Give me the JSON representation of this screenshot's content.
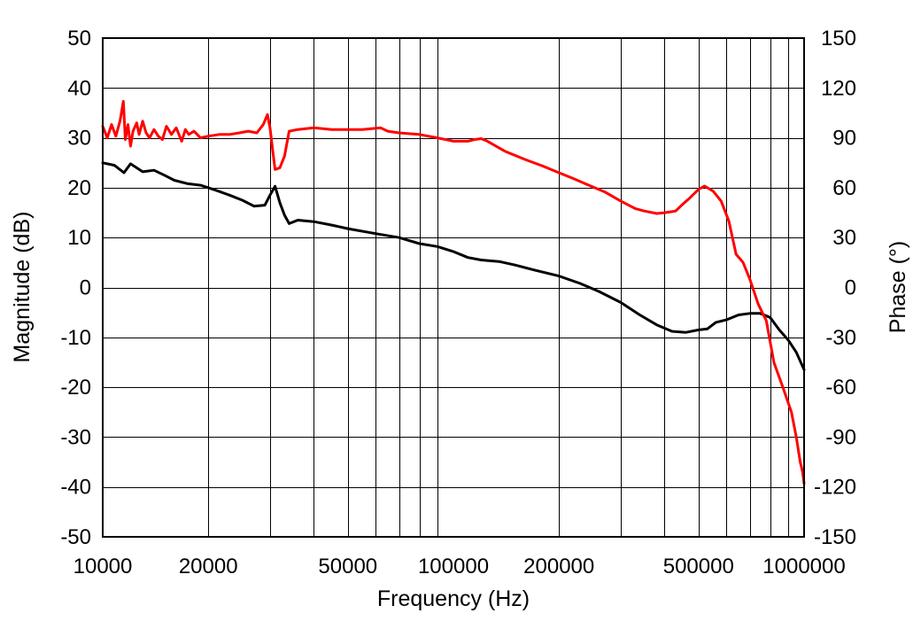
{
  "chart_data": {
    "type": "line",
    "xlabel": "Frequency (Hz)",
    "ylabel": "Magnitude (dB)",
    "y2label": "Phase (°)",
    "xscale": "log",
    "xlim": [
      10000,
      1000000
    ],
    "ylim": [
      -50,
      50
    ],
    "y2lim": [
      -150,
      150
    ],
    "grid": true,
    "x_tick_labels": [
      "10000",
      "20000",
      "50000",
      "100000",
      "200000",
      "500000",
      "1000000"
    ],
    "y_tick_labels": [
      "50",
      "40",
      "30",
      "20",
      "10",
      "0",
      "-10",
      "-20",
      "-30",
      "-40",
      "-50"
    ],
    "y2_tick_labels": [
      "150",
      "120",
      "90",
      "60",
      "30",
      "0",
      "-30",
      "-60",
      "-90",
      "-120",
      "-150"
    ],
    "series": [
      {
        "axis": "left",
        "color": "#000000",
        "points": [
          [
            10000,
            25
          ],
          [
            10800,
            24.5
          ],
          [
            11500,
            23
          ],
          [
            12000,
            24.8
          ],
          [
            13000,
            23.2
          ],
          [
            14000,
            23.5
          ],
          [
            15000,
            22.5
          ],
          [
            16000,
            21.5
          ],
          [
            17500,
            20.8
          ],
          [
            19000,
            20.5
          ],
          [
            21000,
            19.5
          ],
          [
            23000,
            18.5
          ],
          [
            25000,
            17.5
          ],
          [
            27000,
            16.3
          ],
          [
            29000,
            16.5
          ],
          [
            30000,
            18.5
          ],
          [
            31000,
            20.3
          ],
          [
            32000,
            17
          ],
          [
            33000,
            14.5
          ],
          [
            34000,
            12.8
          ],
          [
            36000,
            13.5
          ],
          [
            40000,
            13.2
          ],
          [
            45000,
            12.5
          ],
          [
            50000,
            11.8
          ],
          [
            60000,
            10.8
          ],
          [
            70000,
            10
          ],
          [
            80000,
            8.8
          ],
          [
            90000,
            8.2
          ],
          [
            100000,
            7.2
          ],
          [
            110000,
            6
          ],
          [
            120000,
            5.5
          ],
          [
            135000,
            5.2
          ],
          [
            150000,
            4.5
          ],
          [
            170000,
            3.5
          ],
          [
            200000,
            2.3
          ],
          [
            230000,
            0.8
          ],
          [
            260000,
            -0.8
          ],
          [
            300000,
            -3
          ],
          [
            340000,
            -5.5
          ],
          [
            380000,
            -7.5
          ],
          [
            420000,
            -8.8
          ],
          [
            460000,
            -9
          ],
          [
            500000,
            -8.5
          ],
          [
            530000,
            -8.3
          ],
          [
            560000,
            -7
          ],
          [
            600000,
            -6.5
          ],
          [
            650000,
            -5.5
          ],
          [
            700000,
            -5.2
          ],
          [
            750000,
            -5.2
          ],
          [
            800000,
            -6
          ],
          [
            850000,
            -8.5
          ],
          [
            900000,
            -10.5
          ],
          [
            950000,
            -13
          ],
          [
            1000000,
            -16.5
          ]
        ]
      },
      {
        "axis": "right",
        "color": "#ff0000",
        "points": [
          [
            10000,
            97
          ],
          [
            10300,
            90
          ],
          [
            10600,
            98
          ],
          [
            10900,
            91
          ],
          [
            11200,
            100
          ],
          [
            11450,
            112
          ],
          [
            11600,
            89
          ],
          [
            11800,
            98
          ],
          [
            12000,
            85
          ],
          [
            12200,
            94
          ],
          [
            12500,
            99
          ],
          [
            12700,
            92
          ],
          [
            13000,
            100
          ],
          [
            13300,
            93
          ],
          [
            13600,
            90
          ],
          [
            14000,
            95
          ],
          [
            14400,
            91
          ],
          [
            14800,
            89
          ],
          [
            15200,
            97
          ],
          [
            15700,
            92
          ],
          [
            16200,
            96
          ],
          [
            16800,
            88
          ],
          [
            17200,
            95
          ],
          [
            17600,
            92
          ],
          [
            18200,
            94
          ],
          [
            19000,
            90
          ],
          [
            20000,
            91
          ],
          [
            21500,
            92
          ],
          [
            23000,
            92
          ],
          [
            24500,
            93
          ],
          [
            26000,
            94
          ],
          [
            27500,
            93
          ],
          [
            28700,
            98
          ],
          [
            29500,
            104
          ],
          [
            30000,
            96
          ],
          [
            30500,
            83
          ],
          [
            31000,
            71
          ],
          [
            32000,
            72
          ],
          [
            33000,
            79
          ],
          [
            34000,
            94
          ],
          [
            36000,
            95
          ],
          [
            40000,
            96
          ],
          [
            45000,
            95
          ],
          [
            50000,
            95
          ],
          [
            55000,
            95
          ],
          [
            62000,
            96
          ],
          [
            65000,
            94
          ],
          [
            70000,
            93
          ],
          [
            80000,
            92
          ],
          [
            90000,
            90
          ],
          [
            100000,
            88
          ],
          [
            110000,
            88
          ],
          [
            115000,
            89
          ],
          [
            120000,
            89.5
          ],
          [
            125000,
            88
          ],
          [
            140000,
            82
          ],
          [
            160000,
            77
          ],
          [
            180000,
            73
          ],
          [
            200000,
            69
          ],
          [
            220000,
            65.5
          ],
          [
            240000,
            62
          ],
          [
            270000,
            57.5
          ],
          [
            300000,
            52
          ],
          [
            330000,
            47.5
          ],
          [
            350000,
            46
          ],
          [
            380000,
            44.5
          ],
          [
            400000,
            45
          ],
          [
            430000,
            46
          ],
          [
            450000,
            50
          ],
          [
            470000,
            53.5
          ],
          [
            500000,
            59
          ],
          [
            520000,
            61
          ],
          [
            550000,
            58
          ],
          [
            580000,
            52
          ],
          [
            610000,
            40
          ],
          [
            640000,
            20
          ],
          [
            670000,
            15
          ],
          [
            700000,
            5
          ],
          [
            740000,
            -10
          ],
          [
            780000,
            -20
          ],
          [
            820000,
            -45
          ],
          [
            870000,
            -60
          ],
          [
            920000,
            -75
          ],
          [
            950000,
            -90
          ],
          [
            975000,
            -105
          ],
          [
            990000,
            -111
          ],
          [
            1000000,
            -118
          ]
        ]
      }
    ]
  }
}
